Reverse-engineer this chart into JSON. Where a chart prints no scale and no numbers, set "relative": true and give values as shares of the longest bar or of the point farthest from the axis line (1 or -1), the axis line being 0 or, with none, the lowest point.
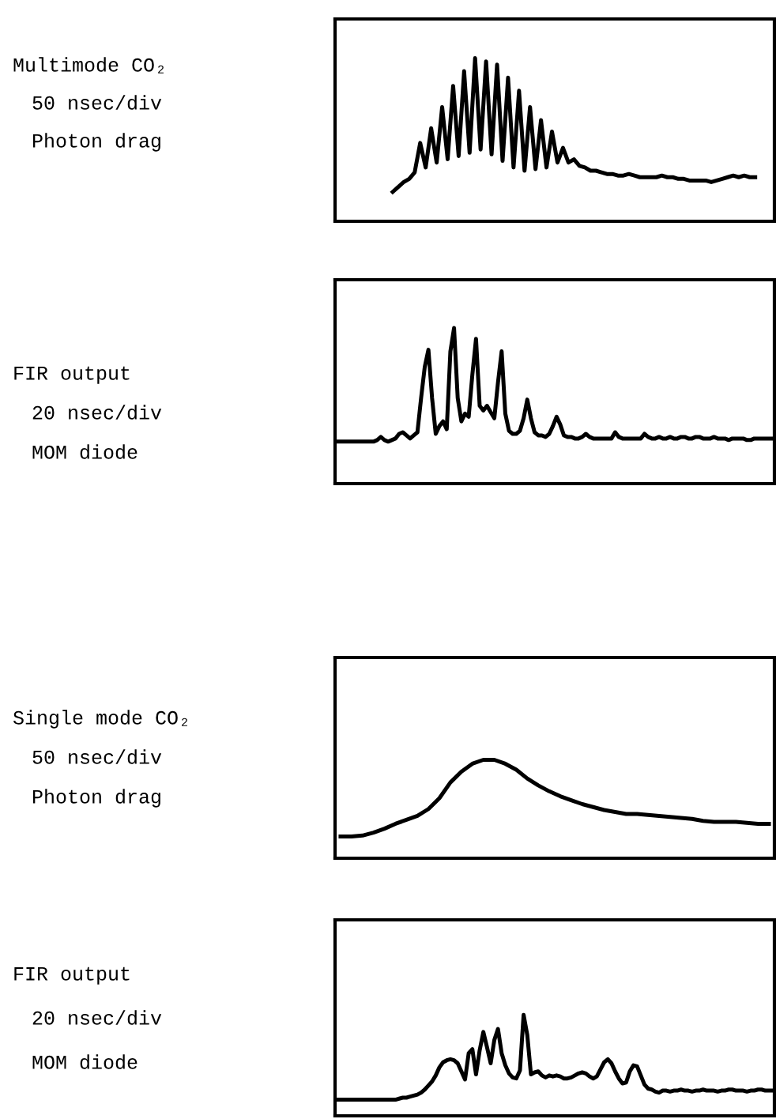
{
  "chart_data": [
    {
      "type": "line",
      "relative": true,
      "annotations": [
        "Multimode CO₂",
        "50 nsec/div",
        "Photon drag"
      ],
      "categories": [
        null,
        null,
        null,
        null,
        null,
        null,
        null,
        null,
        null,
        null,
        null,
        null,
        null,
        null,
        null,
        null,
        null,
        null,
        null,
        null,
        null,
        null,
        null,
        null,
        null,
        null,
        null,
        null,
        null,
        null,
        null,
        null,
        null,
        null,
        null,
        null,
        null,
        null,
        null,
        null,
        null,
        null,
        null,
        null,
        null,
        null,
        null,
        null,
        null,
        null,
        null,
        null,
        null,
        null,
        null,
        null,
        null,
        null,
        null,
        null,
        null,
        null,
        null,
        null,
        null,
        null,
        null,
        null,
        null,
        null,
        null,
        null,
        null,
        null,
        null,
        null,
        null,
        null,
        null,
        null
      ],
      "series": [
        {
          "color": "#000000",
          "values": [
            null,
            null,
            null,
            null,
            null,
            null,
            null,
            null,
            null,
            null,
            0.18,
            0.21,
            0.24,
            0.26,
            0.3,
            0.48,
            0.33,
            0.57,
            0.36,
            0.7,
            0.38,
            0.83,
            0.4,
            0.92,
            0.42,
            1.0,
            0.44,
            0.98,
            0.41,
            0.96,
            0.37,
            0.88,
            0.33,
            0.8,
            0.31,
            0.7,
            0.32,
            0.62,
            0.33,
            0.55,
            0.36,
            0.45,
            0.36,
            0.38,
            0.34,
            0.33,
            0.31,
            0.31,
            0.3,
            0.29,
            0.29,
            0.28,
            0.28,
            0.29,
            0.28,
            0.27,
            0.27,
            0.27,
            0.27,
            0.28,
            0.27,
            0.27,
            0.26,
            0.26,
            0.25,
            0.25,
            0.25,
            0.25,
            0.24,
            0.25,
            0.26,
            0.27,
            0.28,
            0.27,
            0.28,
            0.27,
            0.27,
            null,
            null,
            null
          ]
        }
      ]
    },
    {
      "type": "line",
      "relative": true,
      "annotations": [
        "FIR output",
        "20 nsec/div",
        "MOM diode"
      ],
      "categories": [
        null,
        null,
        null,
        null,
        null,
        null,
        null,
        null,
        null,
        null,
        null,
        null,
        null,
        null,
        null,
        null,
        null,
        null,
        null,
        null,
        null,
        null,
        null,
        null,
        null,
        null,
        null,
        null,
        null,
        null,
        null,
        null,
        null,
        null,
        null,
        null,
        null,
        null,
        null,
        null,
        null,
        null,
        null,
        null,
        null,
        null,
        null,
        null,
        null,
        null,
        null,
        null,
        null,
        null,
        null,
        null,
        null,
        null,
        null,
        null,
        null,
        null,
        null,
        null,
        null,
        null,
        null,
        null,
        null,
        null,
        null,
        null,
        null,
        null,
        null,
        null,
        null,
        null,
        null,
        null,
        null,
        null,
        null,
        null,
        null,
        null,
        null,
        null,
        null,
        null,
        null,
        null,
        null,
        null,
        null,
        null,
        null,
        null,
        null,
        null,
        null,
        null,
        null,
        null,
        null,
        null,
        null,
        null,
        null,
        null,
        null,
        null,
        null,
        null,
        null,
        null,
        null,
        null,
        null,
        null
      ],
      "series": [
        {
          "color": "#000000",
          "values": [
            0.27,
            0.27,
            0.27,
            0.27,
            0.27,
            0.27,
            0.27,
            0.27,
            0.27,
            0.27,
            0.27,
            0.28,
            0.3,
            0.28,
            0.27,
            0.28,
            0.29,
            0.32,
            0.33,
            0.31,
            0.29,
            0.31,
            0.33,
            0.55,
            0.75,
            0.86,
            0.55,
            0.32,
            0.37,
            0.4,
            0.35,
            0.85,
            1.0,
            0.55,
            0.4,
            0.45,
            0.43,
            0.7,
            0.93,
            0.5,
            0.47,
            0.5,
            0.46,
            0.42,
            0.65,
            0.85,
            0.45,
            0.34,
            0.32,
            0.32,
            0.34,
            0.42,
            0.54,
            0.42,
            0.33,
            0.31,
            0.31,
            0.3,
            0.32,
            0.37,
            0.43,
            0.38,
            0.31,
            0.3,
            0.3,
            0.29,
            0.29,
            0.3,
            0.32,
            0.3,
            0.29,
            0.29,
            0.29,
            0.29,
            0.29,
            0.29,
            0.33,
            0.3,
            0.29,
            0.29,
            0.29,
            0.29,
            0.29,
            0.29,
            0.32,
            0.3,
            0.29,
            0.29,
            0.3,
            0.29,
            0.29,
            0.3,
            0.29,
            0.29,
            0.3,
            0.3,
            0.29,
            0.29,
            0.3,
            0.3,
            0.29,
            0.29,
            0.29,
            0.3,
            0.29,
            0.29,
            0.29,
            0.28,
            0.29,
            0.29,
            0.29,
            0.29,
            0.28,
            0.28,
            0.29,
            0.29,
            0.29,
            0.29,
            0.29,
            0.29
          ]
        }
      ]
    },
    {
      "type": "line",
      "relative": true,
      "annotations": [
        "Single mode CO₂",
        "50 nsec/div",
        "Photon drag"
      ],
      "categories": [
        null,
        null,
        null,
        null,
        null,
        null,
        null,
        null,
        null,
        null,
        null,
        null,
        null,
        null,
        null,
        null,
        null,
        null,
        null,
        null,
        null,
        null,
        null,
        null,
        null,
        null,
        null,
        null,
        null,
        null,
        null,
        null,
        null,
        null,
        null,
        null,
        null,
        null,
        null,
        null
      ],
      "series": [
        {
          "color": "#000000",
          "values": [
            0.22,
            0.22,
            0.23,
            0.26,
            0.3,
            0.35,
            0.39,
            0.43,
            0.5,
            0.61,
            0.77,
            0.88,
            0.96,
            1.0,
            1.0,
            0.96,
            0.9,
            0.81,
            0.74,
            0.68,
            0.63,
            0.59,
            0.55,
            0.52,
            0.49,
            0.47,
            0.45,
            0.45,
            0.44,
            0.43,
            0.42,
            0.41,
            0.4,
            0.38,
            0.37,
            0.37,
            0.37,
            0.36,
            0.35,
            0.35
          ]
        }
      ]
    },
    {
      "type": "line",
      "relative": true,
      "annotations": [
        "FIR output",
        "20 nsec/div",
        "MOM diode"
      ],
      "categories": [
        null,
        null,
        null,
        null,
        null,
        null,
        null,
        null,
        null,
        null,
        null,
        null,
        null,
        null,
        null,
        null,
        null,
        null,
        null,
        null,
        null,
        null,
        null,
        null,
        null,
        null,
        null,
        null,
        null,
        null,
        null,
        null,
        null,
        null,
        null,
        null,
        null,
        null,
        null,
        null,
        null,
        null,
        null,
        null,
        null,
        null,
        null,
        null,
        null,
        null,
        null,
        null,
        null,
        null,
        null,
        null,
        null,
        null,
        null,
        null,
        null,
        null,
        null,
        null,
        null,
        null,
        null,
        null,
        null,
        null,
        null,
        null,
        null,
        null,
        null,
        null,
        null,
        null,
        null,
        null,
        null,
        null,
        null,
        null,
        null,
        null,
        null,
        null,
        null,
        null,
        null,
        null,
        null,
        null,
        null,
        null,
        null,
        null,
        null,
        null,
        null,
        null,
        null,
        null,
        null,
        null,
        null,
        null,
        null,
        null,
        null,
        null,
        null,
        null,
        null,
        null,
        null,
        null,
        null,
        null
      ],
      "series": [
        {
          "color": "#000000",
          "values": [
            0.16,
            0.16,
            0.16,
            0.16,
            0.16,
            0.16,
            0.16,
            0.16,
            0.16,
            0.16,
            0.16,
            0.16,
            0.16,
            0.16,
            0.16,
            0.16,
            0.16,
            0.17,
            0.18,
            0.18,
            0.19,
            0.2,
            0.21,
            0.23,
            0.26,
            0.3,
            0.34,
            0.4,
            0.48,
            0.53,
            0.55,
            0.56,
            0.55,
            0.52,
            0.44,
            0.36,
            0.62,
            0.66,
            0.41,
            0.65,
            0.83,
            0.68,
            0.52,
            0.75,
            0.86,
            0.62,
            0.5,
            0.42,
            0.38,
            0.37,
            0.45,
            1.0,
            0.8,
            0.41,
            0.43,
            0.44,
            0.4,
            0.38,
            0.4,
            0.39,
            0.4,
            0.39,
            0.37,
            0.37,
            0.38,
            0.4,
            0.42,
            0.43,
            0.42,
            0.39,
            0.37,
            0.39,
            0.46,
            0.53,
            0.56,
            0.52,
            0.44,
            0.37,
            0.32,
            0.33,
            0.44,
            0.5,
            0.49,
            0.4,
            0.31,
            0.27,
            0.26,
            0.24,
            0.23,
            0.25,
            0.25,
            0.24,
            0.25,
            0.25,
            0.26,
            0.25,
            0.25,
            0.24,
            0.25,
            0.25,
            0.26,
            0.25,
            0.25,
            0.25,
            0.24,
            0.25,
            0.25,
            0.26,
            0.26,
            0.25,
            0.25,
            0.25,
            0.24,
            0.25,
            0.25,
            0.26,
            0.26,
            0.25,
            0.25,
            0.25
          ]
        }
      ]
    }
  ]
}
